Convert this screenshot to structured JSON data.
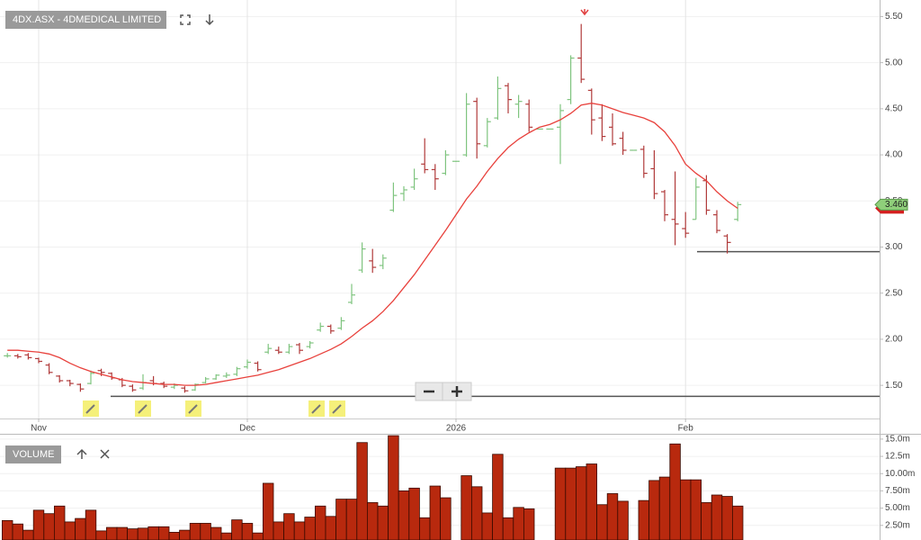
{
  "chart_data": {
    "type": "ohlc",
    "title": "4DX.ASX - 4DMEDICAL LIMITED",
    "volume_title": "VOLUME",
    "categories": [
      null,
      null,
      null,
      "Nov",
      null,
      null,
      null,
      null,
      null,
      null,
      null,
      null,
      null,
      null,
      null,
      null,
      null,
      null,
      null,
      null,
      null,
      null,
      null,
      "Dec",
      null,
      null,
      null,
      null,
      null,
      null,
      null,
      null,
      null,
      null,
      null,
      null,
      null,
      null,
      null,
      null,
      null,
      null,
      null,
      "2026",
      null,
      null,
      null,
      null,
      null,
      null,
      null,
      null,
      null,
      null,
      null,
      null,
      null,
      null,
      null,
      null,
      null,
      null,
      null,
      null,
      null,
      "Feb",
      null,
      null,
      null,
      null,
      null
    ],
    "ohlc": [
      [
        1.82,
        1.85,
        1.8,
        1.82
      ],
      [
        1.82,
        1.84,
        1.79,
        1.81
      ],
      [
        1.83,
        1.85,
        1.78,
        1.8
      ],
      [
        1.79,
        1.8,
        1.74,
        1.76
      ],
      [
        1.72,
        1.74,
        1.62,
        1.64
      ],
      [
        1.6,
        1.61,
        1.53,
        1.55
      ],
      [
        1.55,
        1.56,
        1.49,
        1.52
      ],
      [
        1.51,
        1.52,
        1.43,
        1.46
      ],
      [
        1.52,
        1.66,
        1.51,
        1.63
      ],
      [
        1.66,
        1.68,
        1.6,
        1.64
      ],
      [
        1.63,
        1.64,
        1.56,
        1.58
      ],
      [
        1.56,
        1.58,
        1.48,
        1.5
      ],
      [
        1.49,
        1.51,
        1.43,
        1.45
      ],
      [
        1.47,
        1.62,
        1.45,
        1.53
      ],
      [
        1.55,
        1.6,
        1.5,
        1.52
      ],
      [
        1.52,
        1.54,
        1.47,
        1.49
      ],
      [
        1.48,
        1.52,
        1.46,
        1.5
      ],
      [
        1.47,
        1.49,
        1.42,
        1.44
      ],
      [
        1.45,
        1.52,
        1.44,
        1.51
      ],
      [
        1.53,
        1.59,
        1.52,
        1.57
      ],
      [
        1.57,
        1.62,
        1.56,
        1.61
      ],
      [
        1.6,
        1.64,
        1.58,
        1.61
      ],
      [
        1.62,
        1.7,
        1.6,
        1.68
      ],
      [
        1.7,
        1.78,
        1.68,
        1.75
      ],
      [
        1.74,
        1.76,
        1.65,
        1.67
      ],
      [
        1.86,
        1.95,
        1.84,
        1.9
      ],
      [
        1.88,
        1.92,
        1.84,
        1.86
      ],
      [
        1.86,
        1.95,
        1.84,
        1.92
      ],
      [
        1.94,
        1.96,
        1.84,
        1.88
      ],
      [
        1.92,
        1.98,
        1.9,
        1.96
      ],
      [
        2.1,
        2.18,
        2.08,
        2.14
      ],
      [
        2.14,
        2.16,
        2.06,
        2.09
      ],
      [
        2.12,
        2.24,
        2.1,
        2.2
      ],
      [
        2.4,
        2.6,
        2.38,
        2.48
      ],
      [
        2.75,
        3.05,
        2.72,
        2.98
      ],
      [
        2.85,
        2.98,
        2.72,
        2.78
      ],
      [
        2.8,
        2.92,
        2.76,
        2.88
      ],
      [
        3.4,
        3.7,
        3.38,
        3.56
      ],
      [
        3.58,
        3.66,
        3.5,
        3.62
      ],
      [
        3.65,
        3.85,
        3.62,
        3.74
      ],
      [
        3.9,
        4.18,
        3.8,
        3.84
      ],
      [
        3.84,
        3.9,
        3.62,
        3.74
      ],
      [
        3.8,
        4.05,
        3.78,
        4.0
      ],
      [
        3.93,
        3.93,
        3.93,
        3.93
      ],
      [
        4.0,
        4.67,
        3.98,
        4.55
      ],
      [
        4.58,
        4.62,
        3.96,
        4.12
      ],
      [
        4.1,
        4.4,
        4.08,
        4.36
      ],
      [
        4.4,
        4.85,
        4.38,
        4.72
      ],
      [
        4.75,
        4.78,
        4.45,
        4.6
      ],
      [
        4.55,
        4.65,
        4.4,
        4.58
      ],
      [
        4.55,
        4.6,
        4.25,
        4.3
      ],
      [
        4.28,
        4.28,
        4.28,
        4.28
      ],
      [
        4.28,
        4.28,
        4.28,
        4.28
      ],
      [
        4.3,
        4.55,
        3.9,
        4.48
      ],
      [
        4.6,
        5.08,
        4.55,
        5.05
      ],
      [
        5.05,
        5.42,
        4.78,
        4.82
      ],
      [
        4.7,
        4.72,
        4.22,
        4.38
      ],
      [
        4.4,
        4.55,
        4.15,
        4.2
      ],
      [
        4.3,
        4.45,
        4.1,
        4.12
      ],
      [
        4.18,
        4.25,
        4.0,
        4.05
      ],
      [
        4.05,
        4.05,
        4.05,
        4.05
      ],
      [
        4.06,
        4.1,
        3.75,
        3.8
      ],
      [
        3.85,
        4.05,
        3.52,
        3.58
      ],
      [
        3.6,
        3.62,
        3.28,
        3.35
      ],
      [
        3.3,
        3.82,
        3.02,
        3.25
      ],
      [
        3.2,
        3.38,
        3.1,
        3.15
      ],
      [
        3.3,
        3.75,
        3.3,
        3.65
      ],
      [
        3.72,
        3.78,
        3.35,
        3.4
      ],
      [
        3.35,
        3.4,
        3.15,
        3.18
      ],
      [
        3.12,
        3.14,
        2.93,
        3.05
      ],
      [
        3.3,
        3.49,
        3.28,
        3.46
      ]
    ],
    "ma": [
      1.88,
      1.88,
      1.87,
      1.86,
      1.84,
      1.8,
      1.74,
      1.69,
      1.65,
      1.62,
      1.59,
      1.56,
      1.54,
      1.53,
      1.52,
      1.51,
      1.51,
      1.5,
      1.5,
      1.51,
      1.53,
      1.55,
      1.57,
      1.59,
      1.61,
      1.64,
      1.67,
      1.71,
      1.75,
      1.79,
      1.84,
      1.89,
      1.95,
      2.03,
      2.12,
      2.2,
      2.3,
      2.42,
      2.56,
      2.7,
      2.86,
      3.02,
      3.18,
      3.35,
      3.52,
      3.66,
      3.82,
      3.96,
      4.08,
      4.17,
      4.24,
      4.3,
      4.33,
      4.38,
      4.45,
      4.54,
      4.56,
      4.54,
      4.5,
      4.46,
      4.43,
      4.4,
      4.35,
      4.25,
      4.1,
      3.9,
      3.8,
      3.72,
      3.6,
      3.5,
      3.42
    ],
    "volume": [
      3.2,
      2.7,
      1.8,
      4.7,
      4.2,
      5.3,
      3.0,
      3.5,
      4.7,
      1.7,
      2.2,
      2.2,
      2.0,
      2.1,
      2.3,
      2.3,
      1.5,
      1.8,
      2.8,
      2.8,
      2.2,
      1.4,
      3.3,
      2.8,
      1.4,
      8.6,
      3.0,
      4.2,
      3.0,
      3.7,
      5.3,
      3.8,
      6.3,
      6.3,
      14.5,
      5.8,
      5.3,
      15.5,
      7.5,
      7.9,
      3.6,
      8.2,
      6.5,
      null,
      9.7,
      8.1,
      4.3,
      12.8,
      3.6,
      5.1,
      4.9,
      null,
      null,
      10.8,
      10.8,
      11.0,
      11.4,
      5.5,
      7.1,
      6.0,
      null,
      6.1,
      9.0,
      9.5,
      14.3,
      9.1,
      9.1,
      5.8,
      6.9,
      6.7,
      5.3
    ],
    "up_color": "#7fc47f",
    "down_color": "#b03a3a",
    "ma_color": "#e8413c",
    "volume_color": "#b8290e",
    "ylim": [
      1.14,
      5.68
    ],
    "yticks": [
      {
        "value": 1.5,
        "label": "1.50"
      },
      {
        "value": 2,
        "label": "2.00"
      },
      {
        "value": 2.5,
        "label": "2.50"
      },
      {
        "value": 3,
        "label": "3.00"
      },
      {
        "value": 3.5,
        "label": "3.50"
      },
      {
        "value": 4,
        "label": "4.00"
      },
      {
        "value": 4.5,
        "label": "4.50"
      },
      {
        "value": 5,
        "label": "5.00"
      },
      {
        "value": 5.5,
        "label": "5.50"
      }
    ],
    "volume_ylim": [
      0.38,
      15.77
    ],
    "volume_yticks": [
      {
        "value": 2.5,
        "label": "2.50m"
      },
      {
        "value": 5,
        "label": "5.00m"
      },
      {
        "value": 7.5,
        "label": "7.50m"
      },
      {
        "value": 10,
        "label": "10.00m"
      },
      {
        "value": 12.5,
        "label": "12.5m"
      },
      {
        "value": 15,
        "label": "15.0m"
      }
    ],
    "hlines": [
      2.95,
      1.38
    ],
    "last_price": {
      "value": 3.46,
      "label": "3.460"
    },
    "grid": true
  }
}
